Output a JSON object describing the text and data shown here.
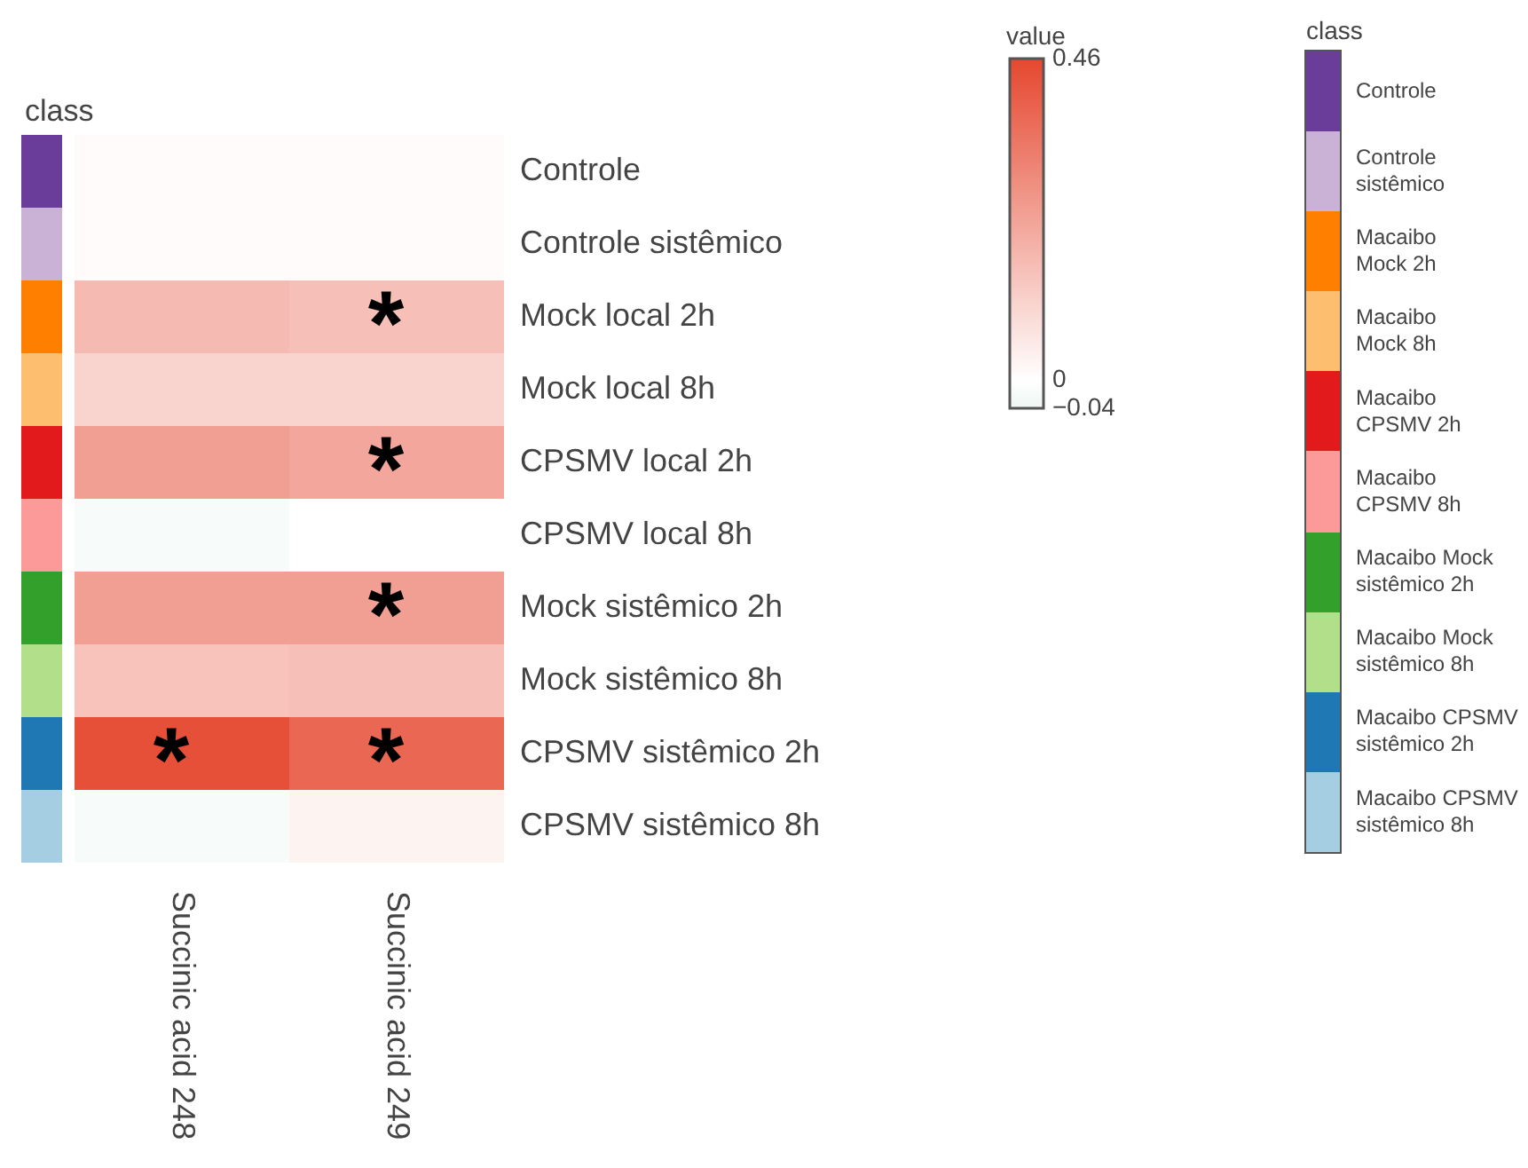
{
  "chart_data": {
    "type": "heatmap",
    "categories": [
      "Succinic acid 248",
      "Succinic acid 249"
    ],
    "y_categories": [
      "Controle",
      "Controle sistêmico",
      "Mock local 2h",
      "Mock local 8h",
      "CPSMV local 2h",
      "CPSMV local 8h",
      "Mock sistêmico 2h",
      "Mock sistêmico 8h",
      "CPSMV sistêmico 2h",
      "CPSMV sistêmico 8h"
    ],
    "cells": [
      [
        0.01,
        0.01
      ],
      [
        0.01,
        0.01
      ],
      [
        0.17,
        0.16
      ],
      [
        0.11,
        0.11
      ],
      [
        0.24,
        0.22
      ],
      [
        -0.02,
        0.0
      ],
      [
        0.24,
        0.24
      ],
      [
        0.15,
        0.16
      ],
      [
        0.44,
        0.38
      ],
      [
        -0.02,
        0.03
      ]
    ],
    "cell_labels": [
      [
        null,
        null
      ],
      [
        null,
        null
      ],
      [
        null,
        "*"
      ],
      [
        null,
        null
      ],
      [
        null,
        "*"
      ],
      [
        null,
        null
      ],
      [
        null,
        "*"
      ],
      [
        null,
        null
      ],
      [
        "*",
        "*"
      ],
      [
        null,
        null
      ]
    ],
    "clabel": "value",
    "clim": [
      -0.04,
      0.46
    ],
    "cticks": [
      {
        "value": -0.04,
        "label": "−0.04"
      },
      0,
      0.46
    ],
    "legend_title": "class",
    "annotations": [
      "Controle",
      "Controle sistêmico",
      "Macaibo Mock 2h",
      "Macaibo Mock 8h",
      "Macaibo CPSMV 2h",
      "Macaibo CPSMV 8h",
      "Macaibo Mock sistêmico 2h",
      "Macaibo Mock sistêmico 8h",
      "Macaibo CPSMV sistêmico 2h",
      "Macaibo CPSMV sistêmico 8h"
    ]
  }
}
